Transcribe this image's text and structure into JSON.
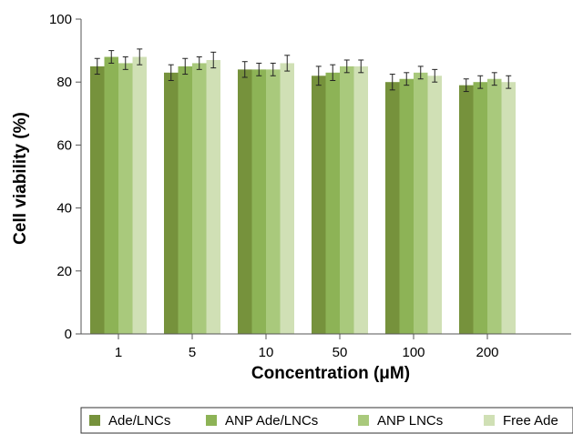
{
  "chart_data": {
    "type": "bar",
    "title": "",
    "xlabel": "Concentration (μM)",
    "ylabel": "Cell viability (%)",
    "ylim": [
      0,
      100
    ],
    "yticks": [
      0,
      20,
      40,
      60,
      80,
      100
    ],
    "categories": [
      "1",
      "5",
      "10",
      "50",
      "100",
      "200"
    ],
    "error_bars": true,
    "grid": false,
    "legend_position": "bottom",
    "series": [
      {
        "name": "Ade/LNCs",
        "color": "#76923c",
        "values": [
          85,
          83,
          84,
          82,
          80,
          79
        ],
        "errors": [
          2.5,
          2.5,
          2.5,
          3,
          2.5,
          2
        ]
      },
      {
        "name": "ANP Ade/LNCs",
        "color": "#8db356",
        "values": [
          88,
          85,
          84,
          83,
          81,
          80
        ],
        "errors": [
          2,
          2.5,
          2,
          2.5,
          2,
          2
        ]
      },
      {
        "name": "ANP LNCs",
        "color": "#a9c97c",
        "values": [
          86,
          86,
          84,
          85,
          83,
          81
        ],
        "errors": [
          2,
          2,
          2,
          2,
          2,
          2
        ]
      },
      {
        "name": "Free Ade",
        "color": "#d0e0b5",
        "values": [
          88,
          87,
          86,
          85,
          82,
          80
        ],
        "errors": [
          2.5,
          2.5,
          2.5,
          2,
          2,
          2
        ]
      }
    ]
  }
}
